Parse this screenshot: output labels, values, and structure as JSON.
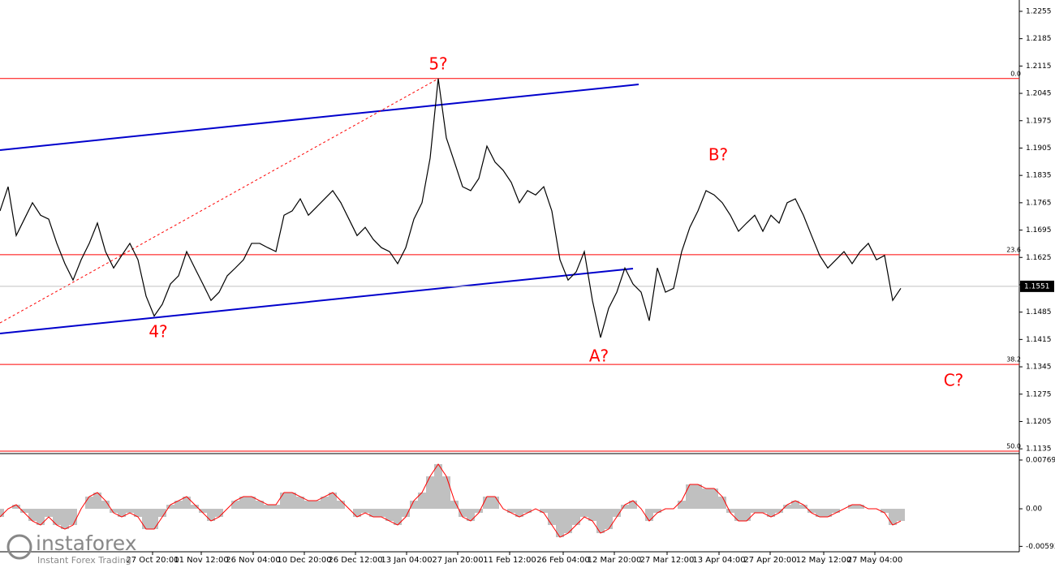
{
  "chart_data": [
    {
      "type": "line",
      "color": "#000000",
      "values": [
        1.1744,
        1.1806,
        1.1681,
        1.1723,
        1.1765,
        1.1733,
        1.1723,
        1.1661,
        1.1609,
        1.1567,
        1.1619,
        1.1661,
        1.1713,
        1.164,
        1.1598,
        1.163,
        1.1661,
        1.1619,
        1.1526,
        1.1475,
        1.1505,
        1.1557,
        1.1578,
        1.164,
        1.1598,
        1.1557,
        1.1515,
        1.1536,
        1.1578,
        1.1598,
        1.1619,
        1.1661,
        1.1661,
        1.165,
        1.164,
        1.1733,
        1.1744,
        1.1775,
        1.1733,
        1.1754,
        1.1775,
        1.1796,
        1.1765,
        1.1723,
        1.1681,
        1.1702,
        1.1671,
        1.165,
        1.164,
        1.1609,
        1.165,
        1.1723,
        1.1765,
        1.1879,
        1.2083,
        1.1931,
        1.1869,
        1.1806,
        1.1796,
        1.1827,
        1.191,
        1.1869,
        1.1848,
        1.1817,
        1.1765,
        1.1796,
        1.1785,
        1.1806,
        1.1744,
        1.1619,
        1.1567,
        1.1588,
        1.164,
        1.1515,
        1.142,
        1.1495,
        1.1536,
        1.1598,
        1.1557,
        1.1536,
        1.1463,
        1.1598,
        1.1536,
        1.1546,
        1.164,
        1.1702,
        1.1744,
        1.1796,
        1.1785,
        1.1765,
        1.1733,
        1.1692,
        1.1713,
        1.1733,
        1.1692,
        1.1733,
        1.1713,
        1.1765,
        1.1775,
        1.1733,
        1.1681,
        1.163,
        1.1598,
        1.1619,
        1.164,
        1.1609,
        1.164,
        1.1661,
        1.1619,
        1.163,
        1.1515,
        1.1546
      ],
      "ylim": [
        1.1127,
        1.2284
      ],
      "yticks": [
        1.2255,
        1.2185,
        1.2115,
        1.2045,
        1.1975,
        1.1905,
        1.1835,
        1.1765,
        1.1695,
        1.1625,
        1.1555,
        1.1485,
        1.1415,
        1.1345,
        1.1275,
        1.1205,
        1.1135
      ],
      "xlim": [
        0,
        125.5
      ],
      "xticks": [
        {
          "value": 18.8,
          "label": "27 Oct 20:00"
        },
        {
          "value": 24.8,
          "label": "11 Nov 12:00"
        },
        {
          "value": 31.2,
          "label": "26 Nov 04:00"
        },
        {
          "value": 37.5,
          "label": "10 Dec 20:00"
        },
        {
          "value": 43.8,
          "label": "26 Dec 12:00"
        },
        {
          "value": 50.1,
          "label": "13 Jan 04:00"
        },
        {
          "value": 56.4,
          "label": "27 Jan 20:00"
        },
        {
          "value": 62.8,
          "label": "11 Feb 12:00"
        },
        {
          "value": 69.4,
          "label": "26 Feb 04:00"
        },
        {
          "value": 75.7,
          "label": "12 Mar 20:00"
        },
        {
          "value": 82.2,
          "label": "27 Mar 12:00"
        },
        {
          "value": 88.6,
          "label": "13 Apr 04:00"
        },
        {
          "value": 94.9,
          "label": "27 Apr 20:00"
        },
        {
          "value": 101.5,
          "label": "12 May 12:00"
        },
        {
          "value": 107.8,
          "label": "27 May 04:00"
        }
      ],
      "fib_levels": [
        {
          "label": "0.0",
          "price": 1.2083
        },
        {
          "label": "23.6",
          "price": 1.1632
        },
        {
          "label": "38.2",
          "price": 1.1351
        },
        {
          "label": "50.0",
          "price": 1.1129
        }
      ],
      "fib_color": "#ff0000",
      "last_price": 1.1551,
      "annotations": [
        "5?",
        "4?",
        "A?",
        "B?",
        "C?"
      ],
      "annotation_color": "#ff0000"
    },
    {
      "type": "bar",
      "color": "#c0c0c0",
      "line_color": "#ff0000",
      "values": [
        -0.00128,
        0,
        0.00064,
        -0.00064,
        -0.00192,
        -0.00256,
        -0.00128,
        -0.00256,
        -0.0032,
        -0.00256,
        0,
        0.00192,
        0.00256,
        0.00128,
        -0.00064,
        -0.00128,
        -0.00064,
        -0.00128,
        -0.0032,
        -0.0032,
        -0.00128,
        0.00064,
        0.00128,
        0.00192,
        0.00064,
        -0.00064,
        -0.00192,
        -0.00128,
        0,
        0.00128,
        0.00192,
        0.00192,
        0.00128,
        0.00064,
        0.00064,
        0.00256,
        0.00256,
        0.00192,
        0.00128,
        0.00128,
        0.00192,
        0.00256,
        0.00128,
        0,
        -0.00128,
        -0.00064,
        -0.00128,
        -0.00128,
        -0.00192,
        -0.00256,
        -0.00128,
        0.00128,
        0.00256,
        0.00512,
        0.00704,
        0.00512,
        0.00128,
        -0.00128,
        -0.00192,
        -0.00064,
        0.00192,
        0.00192,
        0,
        -0.00064,
        -0.00128,
        -0.00064,
        0,
        -0.00064,
        -0.00256,
        -0.00448,
        -0.00384,
        -0.00256,
        -0.00128,
        -0.00192,
        -0.00384,
        -0.0032,
        -0.00128,
        0.00064,
        0.00128,
        0,
        -0.00192,
        -0.00064,
        0,
        0,
        0.00128,
        0.00384,
        0.00384,
        0.0032,
        0.0032,
        0.00192,
        -0.00064,
        -0.00192,
        -0.00192,
        -0.00064,
        -0.00064,
        -0.00128,
        -0.00064,
        0.00064,
        0.00128,
        0.00064,
        -0.00064,
        -0.00128,
        -0.00128,
        -0.00064,
        0,
        0.00064,
        0.00064,
        0,
        0,
        -0.00064,
        -0.00256,
        -0.00192
      ],
      "ylim": [
        -0.00678,
        0.00858
      ],
      "yticks": [
        0.00769,
        {
          "value": 0,
          "label": "0.00"
        },
        -0.00593
      ]
    }
  ],
  "branding": {
    "name": "instaforex",
    "tagline": "Instant Forex Trading"
  }
}
